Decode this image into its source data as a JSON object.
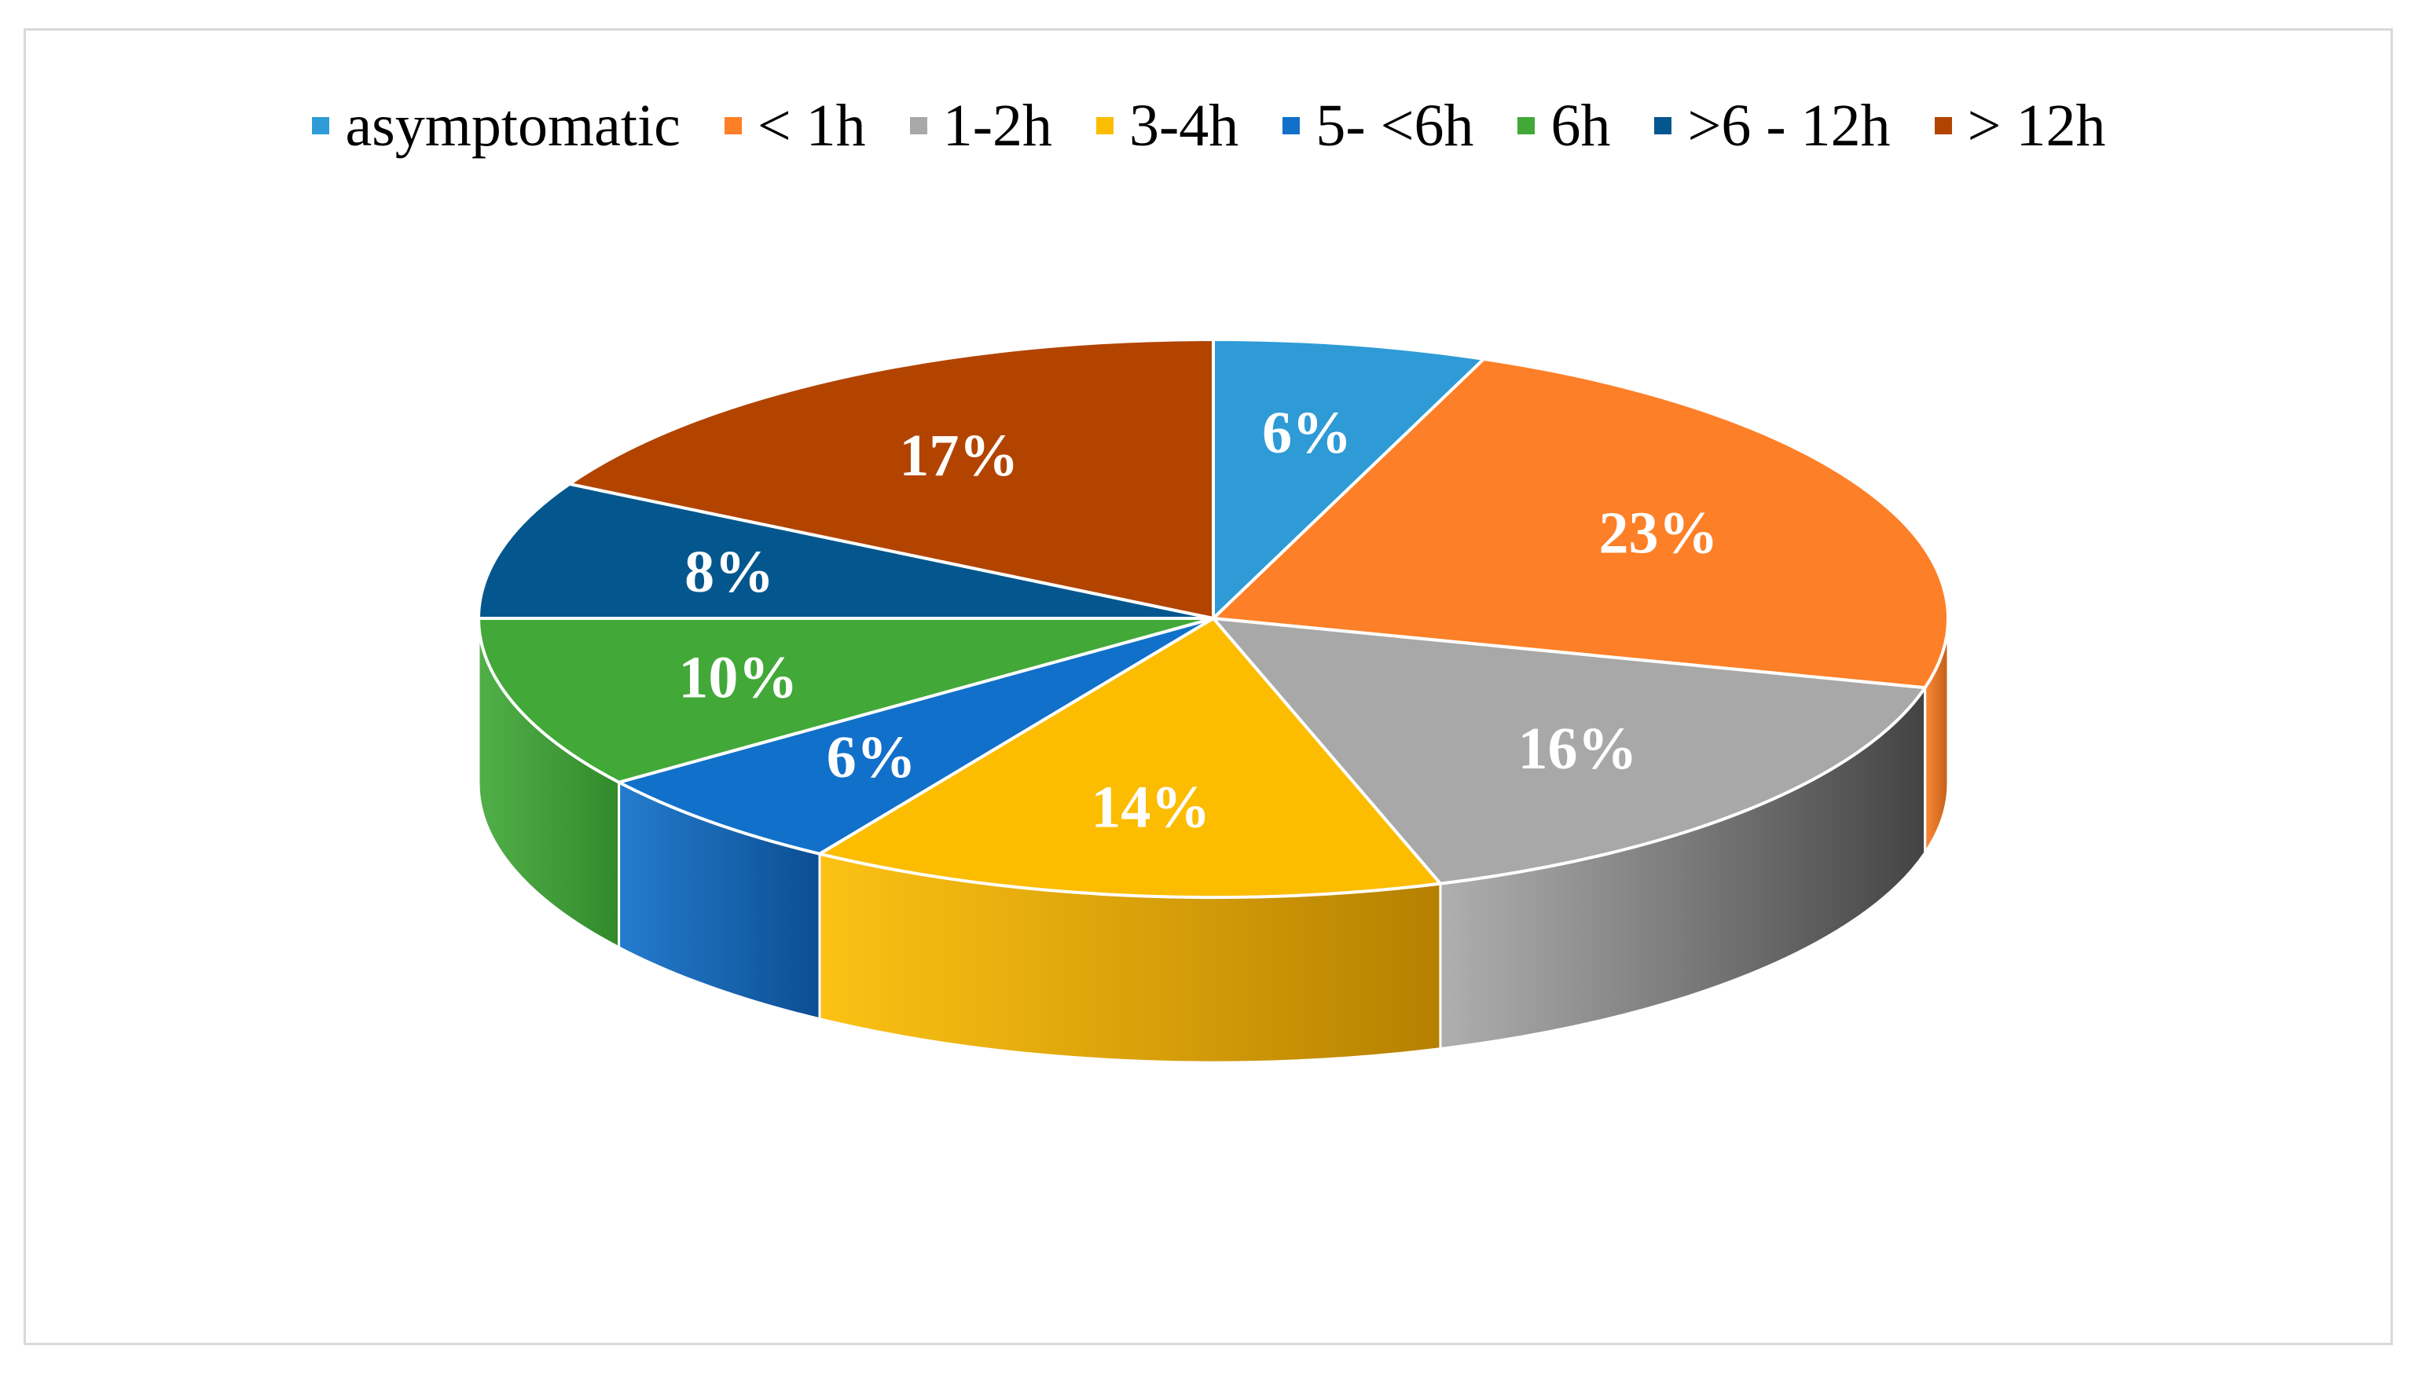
{
  "chart_data": {
    "type": "pie",
    "style": "3d",
    "categories": [
      "asymptomatic",
      "< 1h",
      "1-2h",
      "3-4h",
      "5- <6h",
      "6h",
      ">6 - 12h",
      "> 12h"
    ],
    "values": [
      6,
      23,
      16,
      14,
      6,
      10,
      8,
      17
    ],
    "data_labels": [
      "6%",
      "23%",
      "16%",
      "14%",
      "6%",
      "10%",
      "8%",
      "17%"
    ],
    "colors": [
      "#2e9bd6",
      "#fd7f27",
      "#a8a8a8",
      "#fcbc00",
      "#1170c9",
      "#42a838",
      "#04578e",
      "#b24400"
    ],
    "side_colors": [
      "#1f6f9e",
      "#c05f18",
      "#434343",
      "#b58000",
      "#0c4e92",
      "#318a2a",
      "#033f68",
      "#7e3000"
    ],
    "legend_position": "top"
  }
}
